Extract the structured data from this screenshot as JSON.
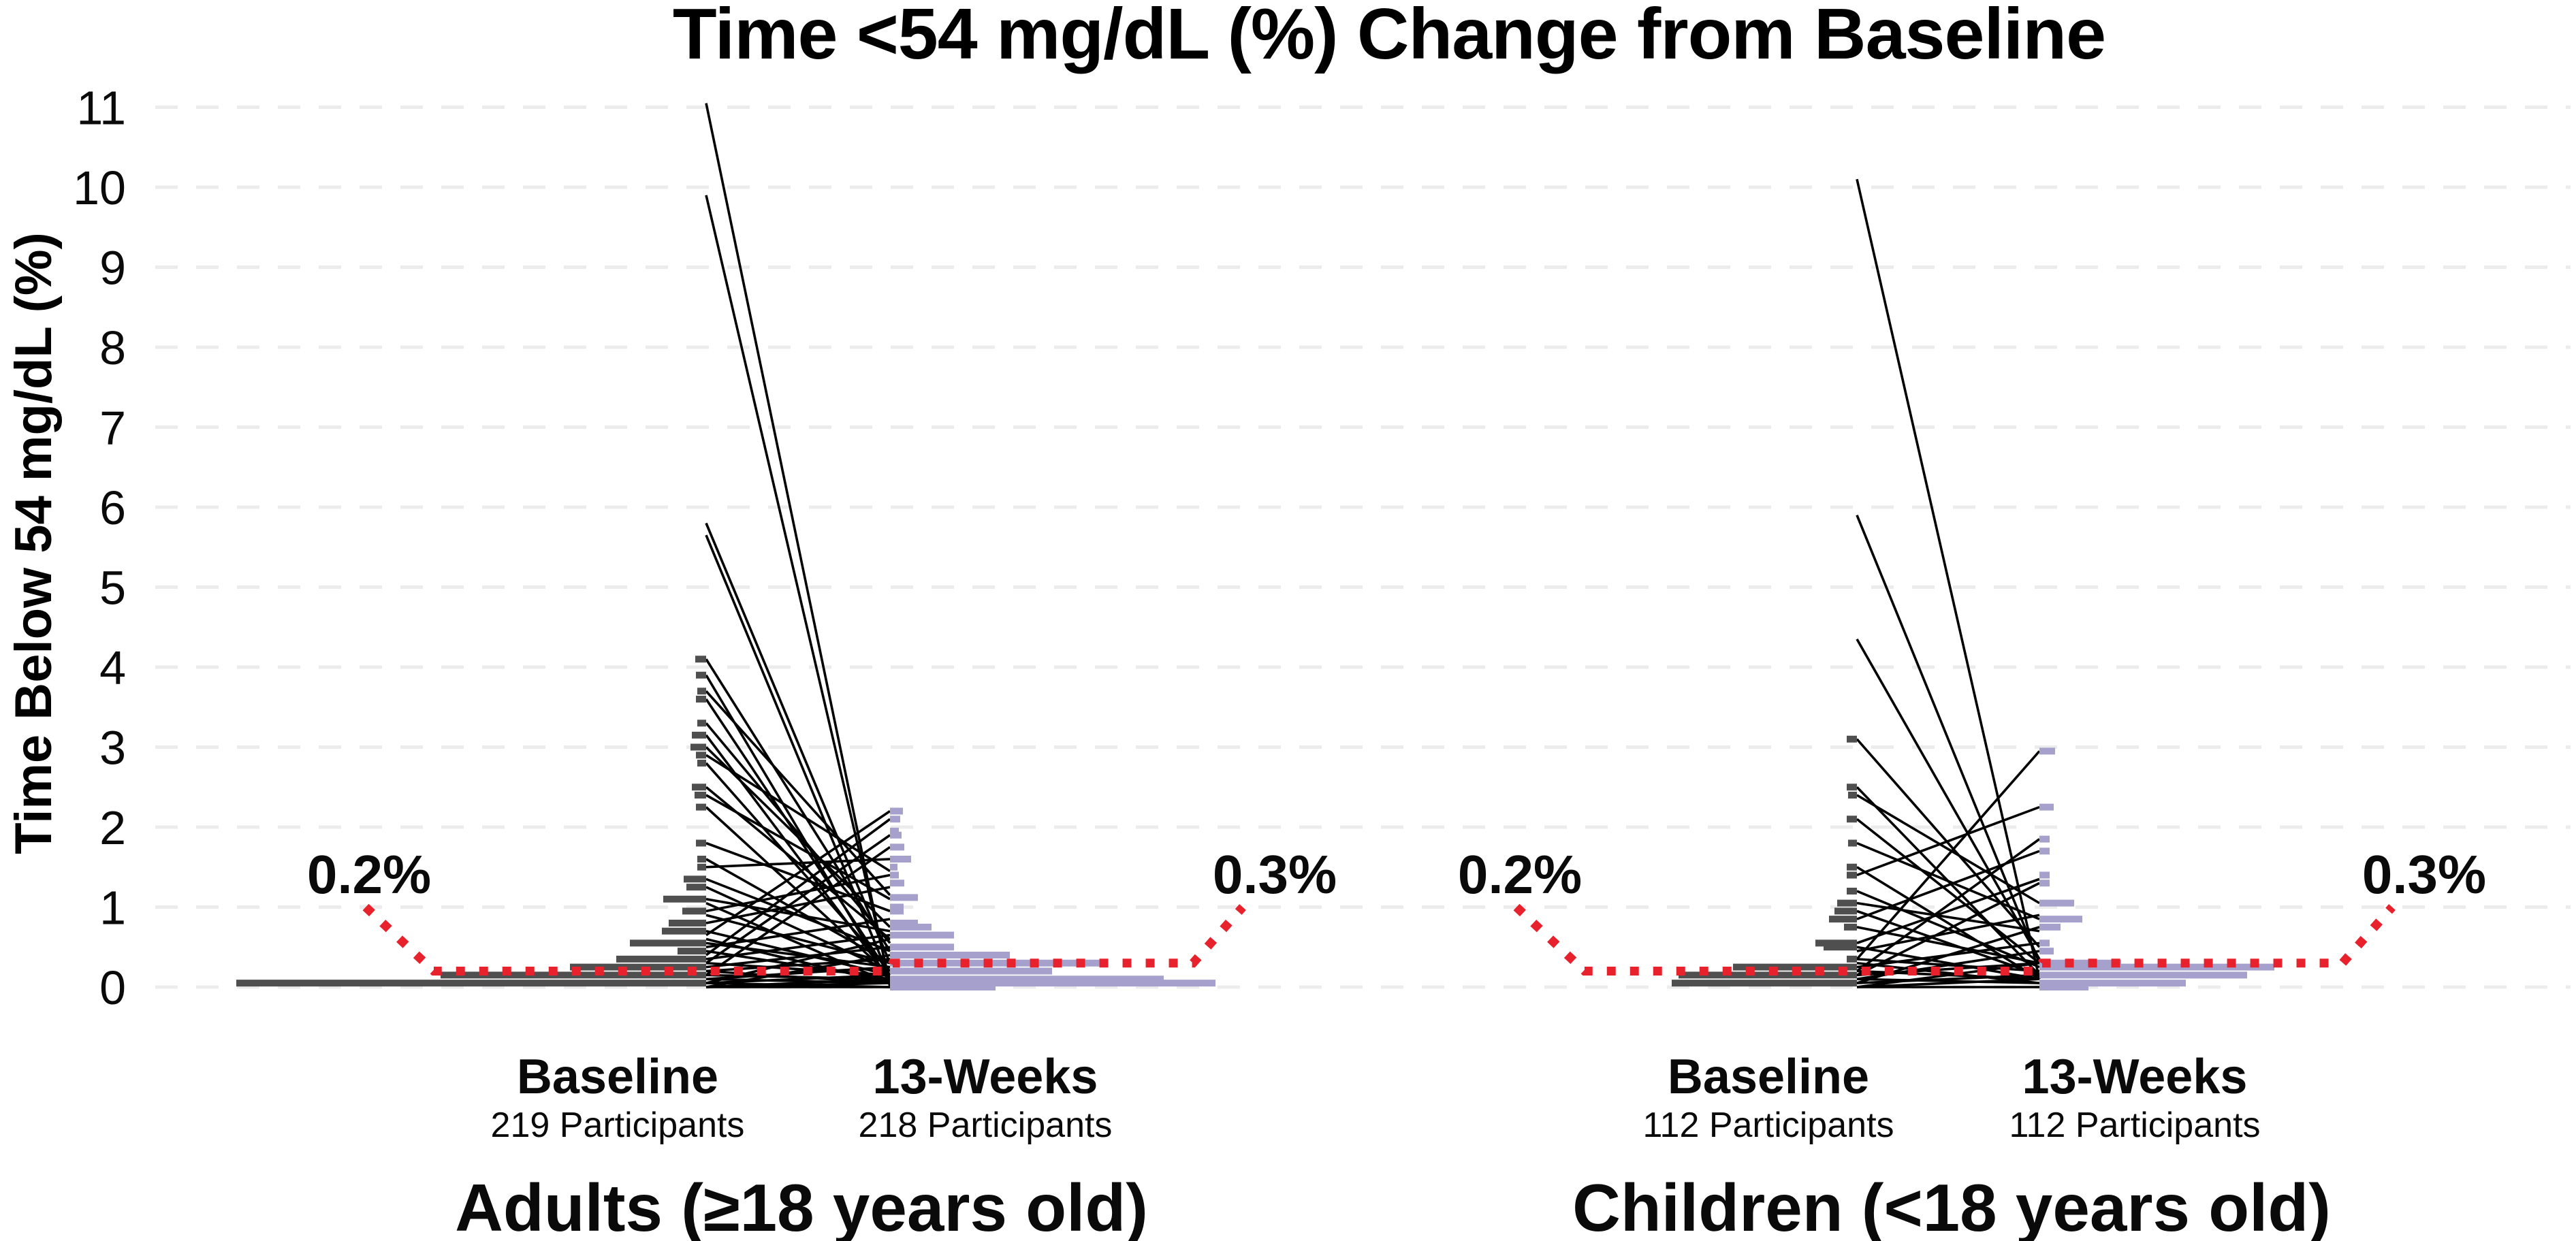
{
  "title": "Time <54 mg/dL (%) Change from Baseline",
  "axis": {
    "label": "Time Below 54 mg/dL (%)",
    "ticks": [
      0,
      1,
      2,
      3,
      4,
      5,
      6,
      7,
      8,
      9,
      10,
      11
    ]
  },
  "colors": {
    "baseline_bar": "#4f4f4f",
    "week13_bar": "#a6a0cd",
    "median_line": "#e8222d",
    "pair_line": "#000000",
    "grid": "#ececec",
    "text": "#0a0a0a"
  },
  "chart_data": {
    "type": "line",
    "subtype": "paired slopegraph with marginal histograms",
    "title": "Time <54 mg/dL (%) Change from Baseline",
    "ylabel": "Time Below 54 mg/dL (%)",
    "ylim": [
      0,
      11
    ],
    "grid": "horizontal-dashed",
    "panels": [
      {
        "id": "adults",
        "footer": "Adults (≥18 years old)",
        "columns": [
          {
            "label": "Baseline",
            "sub": "219 Participants"
          },
          {
            "label": "13-Weeks",
            "sub": "218 Participants"
          }
        ],
        "median": {
          "baseline_value": 0.2,
          "week13_value": 0.3,
          "baseline_label": "0.2%",
          "week13_label": "0.3%"
        },
        "baseline_hist": [
          [
            4.1,
            16
          ],
          [
            3.9,
            15
          ],
          [
            3.7,
            13
          ],
          [
            3.6,
            15
          ],
          [
            3.3,
            13
          ],
          [
            3.15,
            21
          ],
          [
            3.0,
            23
          ],
          [
            2.9,
            15
          ],
          [
            2.8,
            13
          ],
          [
            2.5,
            21
          ],
          [
            2.4,
            17
          ],
          [
            2.25,
            15
          ],
          [
            1.8,
            15
          ],
          [
            1.6,
            13
          ],
          [
            1.5,
            13
          ],
          [
            1.35,
            33
          ],
          [
            1.25,
            29
          ],
          [
            1.1,
            63
          ],
          [
            0.95,
            35
          ],
          [
            0.8,
            55
          ],
          [
            0.7,
            65
          ],
          [
            0.55,
            112
          ],
          [
            0.45,
            42
          ],
          [
            0.35,
            132
          ],
          [
            0.25,
            200
          ],
          [
            0.15,
            390
          ],
          [
            0.05,
            690
          ]
        ],
        "week13_hist": [
          [
            2.2,
            19
          ],
          [
            2.1,
            15
          ],
          [
            1.95,
            13
          ],
          [
            1.9,
            17
          ],
          [
            1.75,
            21
          ],
          [
            1.6,
            31
          ],
          [
            1.5,
            11
          ],
          [
            1.4,
            13
          ],
          [
            1.3,
            21
          ],
          [
            1.12,
            41
          ],
          [
            1.0,
            20
          ],
          [
            0.95,
            20
          ],
          [
            0.8,
            41
          ],
          [
            0.75,
            61
          ],
          [
            0.65,
            94
          ],
          [
            0.5,
            94
          ],
          [
            0.4,
            176
          ],
          [
            0.3,
            311
          ],
          [
            0.2,
            238
          ],
          [
            0.1,
            402
          ],
          [
            0.05,
            478
          ],
          [
            0.0,
            155
          ]
        ],
        "pairs": [
          [
            11.05,
            0.0
          ],
          [
            9.9,
            0.05
          ],
          [
            5.8,
            0.3
          ],
          [
            5.65,
            0.1
          ],
          [
            4.1,
            0.45
          ],
          [
            3.9,
            0.05
          ],
          [
            3.7,
            1.15
          ],
          [
            3.6,
            0.15
          ],
          [
            3.3,
            0.55
          ],
          [
            3.15,
            0.1
          ],
          [
            3.0,
            0.75
          ],
          [
            2.9,
            1.45
          ],
          [
            2.8,
            0.2
          ],
          [
            2.5,
            0.6
          ],
          [
            2.4,
            1.1
          ],
          [
            2.25,
            0.15
          ],
          [
            1.8,
            0.95
          ],
          [
            1.6,
            0.3
          ],
          [
            1.5,
            1.6
          ],
          [
            1.35,
            0.45
          ],
          [
            1.25,
            0.2
          ],
          [
            1.1,
            0.7
          ],
          [
            1.05,
            0.05
          ],
          [
            0.95,
            1.4
          ],
          [
            0.9,
            0.3
          ],
          [
            0.8,
            1.25
          ],
          [
            0.7,
            0.15
          ],
          [
            0.65,
            2.2
          ],
          [
            0.6,
            0.05
          ],
          [
            0.55,
            0.25
          ],
          [
            0.5,
            0.85
          ],
          [
            0.45,
            0.1
          ],
          [
            0.4,
            2.1
          ],
          [
            0.35,
            0.65
          ],
          [
            0.3,
            1.9
          ],
          [
            0.3,
            0.15
          ],
          [
            0.25,
            0.5
          ],
          [
            0.2,
            0.05
          ],
          [
            0.2,
            0.35
          ],
          [
            0.15,
            1.75
          ],
          [
            0.15,
            0.1
          ],
          [
            0.1,
            0.25
          ],
          [
            0.1,
            0.05
          ],
          [
            0.05,
            0.6
          ],
          [
            0.05,
            0.15
          ],
          [
            0.05,
            0.0
          ],
          [
            0.0,
            0.4
          ],
          [
            0.0,
            0.1
          ],
          [
            0.0,
            0.05
          ],
          [
            0.0,
            0.0
          ]
        ]
      },
      {
        "id": "children",
        "footer": "Children (<18 years old)",
        "columns": [
          {
            "label": "Baseline",
            "sub": "112 Participants"
          },
          {
            "label": "13-Weeks",
            "sub": "112 Participants"
          }
        ],
        "median": {
          "baseline_value": 0.2,
          "week13_value": 0.3,
          "baseline_label": "0.2%",
          "week13_label": "0.3%"
        },
        "baseline_hist": [
          [
            3.1,
            15
          ],
          [
            2.5,
            15
          ],
          [
            2.4,
            13
          ],
          [
            2.1,
            15
          ],
          [
            1.8,
            13
          ],
          [
            1.5,
            15
          ],
          [
            1.4,
            15
          ],
          [
            1.2,
            15
          ],
          [
            1.05,
            29
          ],
          [
            0.95,
            33
          ],
          [
            0.85,
            41
          ],
          [
            0.75,
            19
          ],
          [
            0.55,
            61
          ],
          [
            0.5,
            49
          ],
          [
            0.35,
            15
          ],
          [
            0.25,
            182
          ],
          [
            0.15,
            262
          ],
          [
            0.05,
            272
          ]
        ],
        "week13_hist": [
          [
            2.95,
            23
          ],
          [
            2.25,
            21
          ],
          [
            1.85,
            15
          ],
          [
            1.7,
            15
          ],
          [
            1.4,
            15
          ],
          [
            1.3,
            15
          ],
          [
            1.05,
            51
          ],
          [
            0.85,
            63
          ],
          [
            0.75,
            31
          ],
          [
            0.55,
            15
          ],
          [
            0.45,
            21
          ],
          [
            0.3,
            120
          ],
          [
            0.25,
            345
          ],
          [
            0.15,
            305
          ],
          [
            0.05,
            215
          ],
          [
            0.0,
            72
          ]
        ],
        "pairs": [
          [
            10.1,
            0.1
          ],
          [
            5.9,
            0.3
          ],
          [
            4.35,
            0.35
          ],
          [
            3.1,
            0.5
          ],
          [
            2.5,
            0.15
          ],
          [
            2.4,
            1.05
          ],
          [
            2.1,
            0.3
          ],
          [
            1.8,
            0.85
          ],
          [
            1.5,
            0.1
          ],
          [
            1.4,
            2.25
          ],
          [
            1.2,
            0.25
          ],
          [
            1.05,
            0.7
          ],
          [
            0.95,
            0.15
          ],
          [
            0.85,
            1.7
          ],
          [
            0.75,
            0.3
          ],
          [
            0.55,
            1.35
          ],
          [
            0.5,
            0.1
          ],
          [
            0.45,
            0.9
          ],
          [
            0.35,
            2.95
          ],
          [
            0.35,
            0.2
          ],
          [
            0.3,
            0.05
          ],
          [
            0.25,
            0.55
          ],
          [
            0.2,
            1.85
          ],
          [
            0.2,
            0.1
          ],
          [
            0.15,
            1.3
          ],
          [
            0.15,
            0.3
          ],
          [
            0.1,
            0.45
          ],
          [
            0.1,
            0.05
          ],
          [
            0.05,
            0.75
          ],
          [
            0.05,
            0.15
          ],
          [
            0.0,
            0.3
          ],
          [
            0.0,
            0.1
          ],
          [
            0.0,
            0.0
          ]
        ]
      }
    ]
  }
}
